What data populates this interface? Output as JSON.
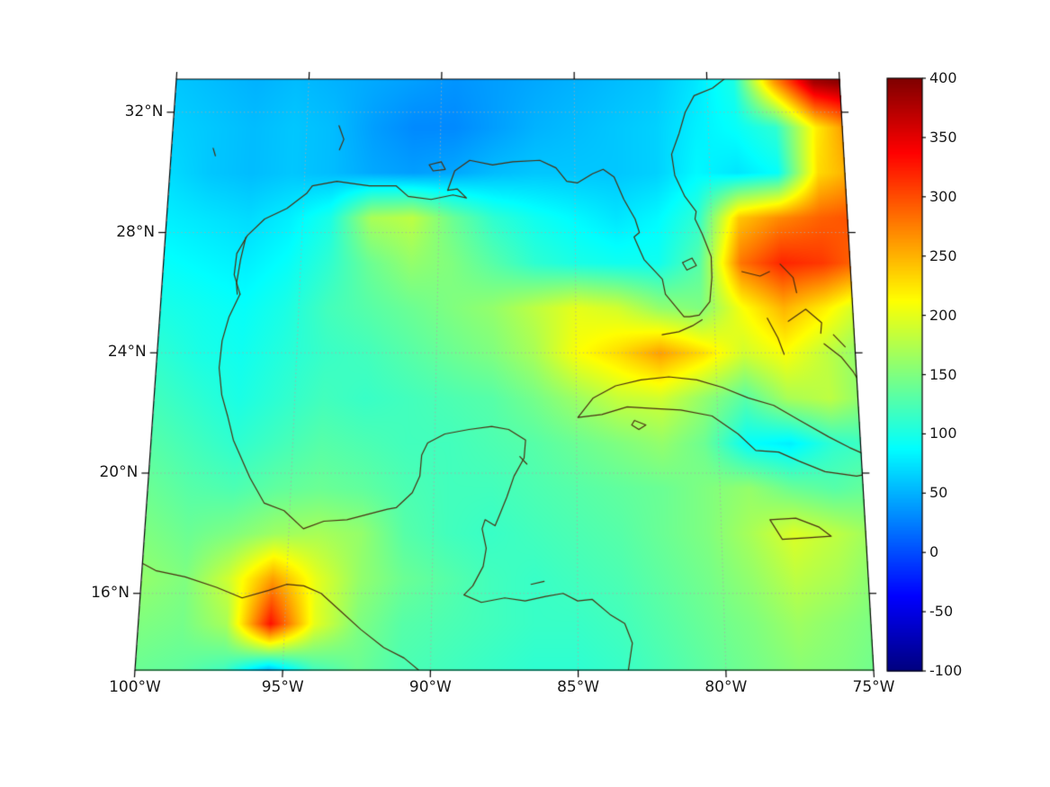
{
  "figure": {
    "background": "#ffffff"
  },
  "chart_data": {
    "type": "heatmap",
    "title": "",
    "projection": "lambert-conformal-like",
    "colormap": "jet",
    "region": "Gulf of Mexico / Caribbean",
    "colorbar": {
      "min": -100,
      "max": 400,
      "ticks": [
        {
          "value": 400,
          "label": "400"
        },
        {
          "value": 350,
          "label": "350"
        },
        {
          "value": 300,
          "label": "300"
        },
        {
          "value": 250,
          "label": "250"
        },
        {
          "value": 200,
          "label": "200"
        },
        {
          "value": 150,
          "label": "150"
        },
        {
          "value": 100,
          "label": "100"
        },
        {
          "value": 50,
          "label": "50"
        },
        {
          "value": 0,
          "label": "0"
        },
        {
          "value": -50,
          "label": "-50"
        },
        {
          "value": -100,
          "label": "-100"
        }
      ]
    },
    "axes": {
      "grid": true,
      "lat_range": [
        13.45,
        33.1
      ],
      "lon_w_range": [
        75,
        100
      ],
      "lat_ticks": [
        {
          "value": 32,
          "label": "32°N"
        },
        {
          "value": 28,
          "label": "28°N"
        },
        {
          "value": 24,
          "label": "24°N"
        },
        {
          "value": 20,
          "label": "20°N"
        },
        {
          "value": 16,
          "label": "16°N"
        }
      ],
      "lon_ticks": [
        {
          "value": 100,
          "label": "100°W"
        },
        {
          "value": 95,
          "label": "95°W"
        },
        {
          "value": 90,
          "label": "90°W"
        },
        {
          "value": 85,
          "label": "85°W"
        },
        {
          "value": 80,
          "label": "80°W"
        },
        {
          "value": 75,
          "label": "75°W"
        }
      ],
      "grid_lat_lines": [
        16,
        20,
        24,
        28,
        32
      ],
      "grid_lon_lines": [
        95,
        90,
        85,
        80
      ]
    },
    "grid_field": {
      "lon_w": [
        100,
        98.5,
        97,
        95.5,
        94,
        92.5,
        91,
        89.5,
        88,
        86.5,
        85,
        83.5,
        82,
        80.5,
        79,
        77.5,
        76,
        74.5
      ],
      "lat": [
        33,
        31.5,
        30,
        28.5,
        27,
        25.5,
        24,
        22.5,
        21,
        19.5,
        18,
        16.5,
        15,
        13.5
      ],
      "values": [
        [
          60,
          55,
          50,
          55,
          50,
          45,
          40,
          35,
          40,
          45,
          50,
          55,
          60,
          75,
          100,
          260,
          380,
          400
        ],
        [
          65,
          60,
          55,
          60,
          55,
          40,
          30,
          30,
          40,
          50,
          55,
          60,
          65,
          80,
          90,
          110,
          220,
          280
        ],
        [
          70,
          60,
          55,
          60,
          55,
          45,
          40,
          45,
          55,
          60,
          60,
          60,
          65,
          85,
          75,
          90,
          230,
          260
        ],
        [
          80,
          75,
          70,
          80,
          100,
          170,
          180,
          140,
          110,
          95,
          85,
          75,
          85,
          110,
          240,
          270,
          290,
          300
        ],
        [
          90,
          85,
          80,
          90,
          110,
          140,
          160,
          150,
          130,
          110,
          100,
          95,
          95,
          130,
          280,
          320,
          310,
          280
        ],
        [
          100,
          95,
          90,
          100,
          120,
          130,
          140,
          150,
          160,
          180,
          200,
          190,
          160,
          150,
          210,
          250,
          220,
          180
        ],
        [
          110,
          100,
          95,
          105,
          115,
          120,
          130,
          140,
          150,
          170,
          210,
          230,
          260,
          230,
          190,
          210,
          180,
          150
        ],
        [
          120,
          110,
          100,
          110,
          120,
          115,
          120,
          125,
          130,
          145,
          165,
          185,
          190,
          160,
          130,
          170,
          180,
          150
        ],
        [
          130,
          120,
          110,
          120,
          130,
          125,
          120,
          120,
          125,
          130,
          140,
          150,
          160,
          140,
          90,
          80,
          110,
          120
        ],
        [
          140,
          130,
          125,
          135,
          140,
          135,
          125,
          120,
          120,
          125,
          130,
          135,
          140,
          150,
          160,
          140,
          130,
          140
        ],
        [
          150,
          140,
          150,
          165,
          170,
          160,
          130,
          120,
          115,
          120,
          125,
          130,
          140,
          150,
          170,
          195,
          180,
          160
        ],
        [
          160,
          150,
          190,
          260,
          200,
          160,
          140,
          130,
          120,
          115,
          120,
          125,
          135,
          145,
          160,
          180,
          170,
          150
        ],
        [
          150,
          145,
          170,
          330,
          200,
          150,
          130,
          125,
          120,
          115,
          115,
          120,
          130,
          140,
          150,
          165,
          155,
          145
        ],
        [
          140,
          135,
          120,
          60,
          120,
          140,
          125,
          120,
          115,
          110,
          110,
          115,
          125,
          135,
          145,
          155,
          150,
          140
        ]
      ]
    },
    "coastlines": {
      "gulf-and-us-east-coast": [
        [
          97.15,
          25.95
        ],
        [
          97.4,
          26.6
        ],
        [
          97.35,
          27.3
        ],
        [
          97.0,
          27.9
        ],
        [
          96.4,
          28.45
        ],
        [
          95.6,
          28.8
        ],
        [
          94.9,
          29.3
        ],
        [
          94.7,
          29.55
        ],
        [
          93.8,
          29.7
        ],
        [
          92.6,
          29.55
        ],
        [
          91.6,
          29.55
        ],
        [
          91.15,
          29.2
        ],
        [
          90.3,
          29.1
        ],
        [
          89.5,
          29.25
        ],
        [
          89.0,
          29.15
        ],
        [
          89.35,
          29.45
        ],
        [
          89.7,
          29.4
        ],
        [
          89.45,
          30.05
        ],
        [
          88.9,
          30.4
        ],
        [
          88.05,
          30.25
        ],
        [
          87.3,
          30.35
        ],
        [
          86.3,
          30.4
        ],
        [
          85.7,
          30.15
        ],
        [
          85.3,
          29.7
        ],
        [
          84.9,
          29.65
        ],
        [
          84.35,
          29.95
        ],
        [
          83.95,
          30.1
        ],
        [
          83.55,
          29.85
        ],
        [
          83.2,
          29.1
        ],
        [
          82.8,
          28.45
        ],
        [
          82.65,
          28.0
        ],
        [
          82.85,
          27.85
        ],
        [
          82.5,
          27.1
        ],
        [
          81.85,
          26.45
        ],
        [
          81.75,
          25.95
        ],
        [
          81.1,
          25.2
        ],
        [
          80.9,
          25.2
        ],
        [
          80.55,
          25.25
        ],
        [
          80.15,
          25.7
        ],
        [
          80.05,
          26.5
        ],
        [
          80.05,
          27.2
        ],
        [
          80.35,
          27.95
        ],
        [
          80.6,
          28.45
        ],
        [
          80.55,
          28.7
        ],
        [
          80.95,
          29.2
        ],
        [
          81.3,
          29.9
        ],
        [
          81.4,
          30.6
        ],
        [
          81.1,
          31.3
        ],
        [
          80.85,
          32.0
        ],
        [
          80.5,
          32.55
        ],
        [
          79.8,
          32.8
        ],
        [
          79.2,
          33.2
        ]
      ],
      "mexico-yucatan-belize-honduras": [
        [
          97.15,
          25.95
        ],
        [
          97.5,
          25.2
        ],
        [
          97.7,
          24.4
        ],
        [
          97.75,
          23.5
        ],
        [
          97.6,
          22.6
        ],
        [
          97.35,
          21.9
        ],
        [
          97.1,
          21.1
        ],
        [
          96.45,
          19.85
        ],
        [
          95.9,
          19.0
        ],
        [
          95.2,
          18.75
        ],
        [
          94.5,
          18.15
        ],
        [
          93.8,
          18.4
        ],
        [
          93.0,
          18.45
        ],
        [
          92.2,
          18.65
        ],
        [
          91.6,
          18.8
        ],
        [
          91.3,
          18.85
        ],
        [
          90.75,
          19.35
        ],
        [
          90.5,
          19.9
        ],
        [
          90.45,
          20.6
        ],
        [
          90.25,
          21.0
        ],
        [
          89.65,
          21.3
        ],
        [
          88.8,
          21.45
        ],
        [
          88.0,
          21.55
        ],
        [
          87.4,
          21.45
        ],
        [
          86.8,
          21.1
        ],
        [
          86.85,
          20.5
        ],
        [
          87.2,
          19.9
        ],
        [
          87.45,
          19.2
        ],
        [
          87.7,
          18.6
        ],
        [
          87.85,
          18.25
        ],
        [
          88.2,
          18.45
        ],
        [
          88.3,
          18.15
        ],
        [
          88.15,
          17.5
        ],
        [
          88.25,
          16.9
        ],
        [
          88.6,
          16.25
        ],
        [
          88.9,
          15.95
        ],
        [
          88.3,
          15.7
        ],
        [
          87.5,
          15.85
        ],
        [
          86.8,
          15.75
        ],
        [
          86.1,
          15.9
        ],
        [
          85.5,
          16.0
        ],
        [
          85.0,
          15.75
        ],
        [
          84.5,
          15.8
        ],
        [
          83.9,
          15.3
        ],
        [
          83.4,
          15.0
        ],
        [
          83.15,
          14.35
        ],
        [
          83.3,
          13.45
        ]
      ],
      "pacific-coast": [
        [
          100.4,
          17.2
        ],
        [
          99.5,
          16.75
        ],
        [
          98.5,
          16.55
        ],
        [
          97.4,
          16.2
        ],
        [
          96.5,
          15.85
        ],
        [
          95.6,
          16.1
        ],
        [
          95.0,
          16.3
        ],
        [
          94.4,
          16.25
        ],
        [
          93.8,
          16.0
        ],
        [
          93.1,
          15.4
        ],
        [
          92.4,
          14.8
        ],
        [
          91.6,
          14.2
        ],
        [
          90.9,
          13.85
        ],
        [
          90.4,
          13.45
        ]
      ],
      "texas-barrier-island": [
        [
          97.05,
          27.85
        ],
        [
          97.2,
          27.1
        ],
        [
          97.3,
          26.3
        ],
        [
          97.25,
          25.95
        ]
      ],
      "cuba": [
        [
          84.95,
          21.85
        ],
        [
          84.4,
          22.5
        ],
        [
          83.6,
          22.9
        ],
        [
          82.7,
          23.1
        ],
        [
          81.7,
          23.2
        ],
        [
          80.7,
          23.1
        ],
        [
          79.8,
          22.85
        ],
        [
          78.9,
          22.5
        ],
        [
          78.0,
          22.25
        ],
        [
          77.1,
          21.75
        ],
        [
          76.1,
          21.2
        ],
        [
          75.4,
          20.85
        ],
        [
          74.7,
          20.55
        ],
        [
          74.2,
          20.25
        ],
        [
          74.4,
          20.05
        ],
        [
          75.2,
          19.9
        ],
        [
          76.3,
          20.05
        ],
        [
          77.2,
          20.4
        ],
        [
          77.9,
          20.7
        ],
        [
          78.7,
          20.75
        ],
        [
          79.3,
          21.3
        ],
        [
          80.2,
          21.9
        ],
        [
          81.3,
          22.1
        ],
        [
          82.3,
          22.15
        ],
        [
          83.2,
          22.2
        ],
        [
          84.1,
          21.95
        ],
        [
          84.95,
          21.85
        ]
      ],
      "isla-de-la-juventud": [
        [
          82.95,
          21.75
        ],
        [
          82.55,
          21.6
        ],
        [
          82.8,
          21.45
        ],
        [
          83.05,
          21.6
        ],
        [
          82.95,
          21.75
        ]
      ],
      "florida-keys": [
        [
          80.45,
          25.1
        ],
        [
          80.8,
          24.9
        ],
        [
          81.3,
          24.7
        ],
        [
          81.9,
          24.6
        ]
      ],
      "grand-bahama": [
        [
          78.95,
          26.7
        ],
        [
          78.3,
          26.55
        ],
        [
          77.95,
          26.7
        ]
      ],
      "abaco": [
        [
          77.55,
          26.95
        ],
        [
          77.1,
          26.5
        ],
        [
          77.0,
          26.0
        ]
      ],
      "andros": [
        [
          78.1,
          25.15
        ],
        [
          77.75,
          24.5
        ],
        [
          77.55,
          23.95
        ]
      ],
      "eleuthera": [
        [
          77.35,
          25.05
        ],
        [
          76.7,
          25.45
        ],
        [
          76.15,
          25.0
        ],
        [
          76.2,
          24.65
        ]
      ],
      "exuma-long-island": [
        [
          76.1,
          24.3
        ],
        [
          75.5,
          23.85
        ],
        [
          75.1,
          23.35
        ],
        [
          74.9,
          23.0
        ]
      ],
      "cat-island": [
        [
          75.75,
          24.6
        ],
        [
          75.35,
          24.2
        ]
      ],
      "crooked-island": [
        [
          74.6,
          22.75
        ],
        [
          74.3,
          22.5
        ]
      ],
      "jamaica": [
        [
          78.3,
          18.45
        ],
        [
          77.4,
          18.5
        ],
        [
          76.6,
          18.2
        ],
        [
          76.2,
          17.9
        ],
        [
          77.0,
          17.85
        ],
        [
          77.9,
          17.8
        ],
        [
          78.3,
          18.45
        ]
      ],
      "haiti-northwest": [
        [
          74.5,
          20.0
        ],
        [
          74.8,
          19.8
        ],
        [
          74.9,
          19.4
        ]
      ],
      "haiti-southwest": [
        [
          74.5,
          18.45
        ],
        [
          74.85,
          18.3
        ]
      ],
      "lake-okeechobee": [
        [
          81.1,
          27.0
        ],
        [
          80.75,
          27.15
        ],
        [
          80.6,
          26.9
        ],
        [
          80.95,
          26.75
        ],
        [
          81.1,
          27.0
        ]
      ],
      "lake-pontchartrain": [
        [
          90.4,
          30.25
        ],
        [
          89.95,
          30.35
        ],
        [
          89.8,
          30.1
        ],
        [
          90.25,
          30.05
        ],
        [
          90.4,
          30.25
        ]
      ],
      "toledo-bend-lake": [
        [
          93.8,
          31.55
        ],
        [
          93.6,
          31.1
        ],
        [
          93.75,
          30.75
        ]
      ],
      "texas-lake": [
        [
          98.45,
          30.8
        ],
        [
          98.35,
          30.55
        ]
      ],
      "cozumel": [
        [
          87.0,
          20.55
        ],
        [
          86.75,
          20.3
        ]
      ],
      "roatan": [
        [
          86.6,
          16.3
        ],
        [
          86.15,
          16.4
        ]
      ]
    },
    "colors": {
      "coastline": "#4a2f10",
      "gridline": "#aaaaaa",
      "frame": "#000000",
      "label": "#1a1a1a",
      "background": "#ffffff"
    }
  }
}
